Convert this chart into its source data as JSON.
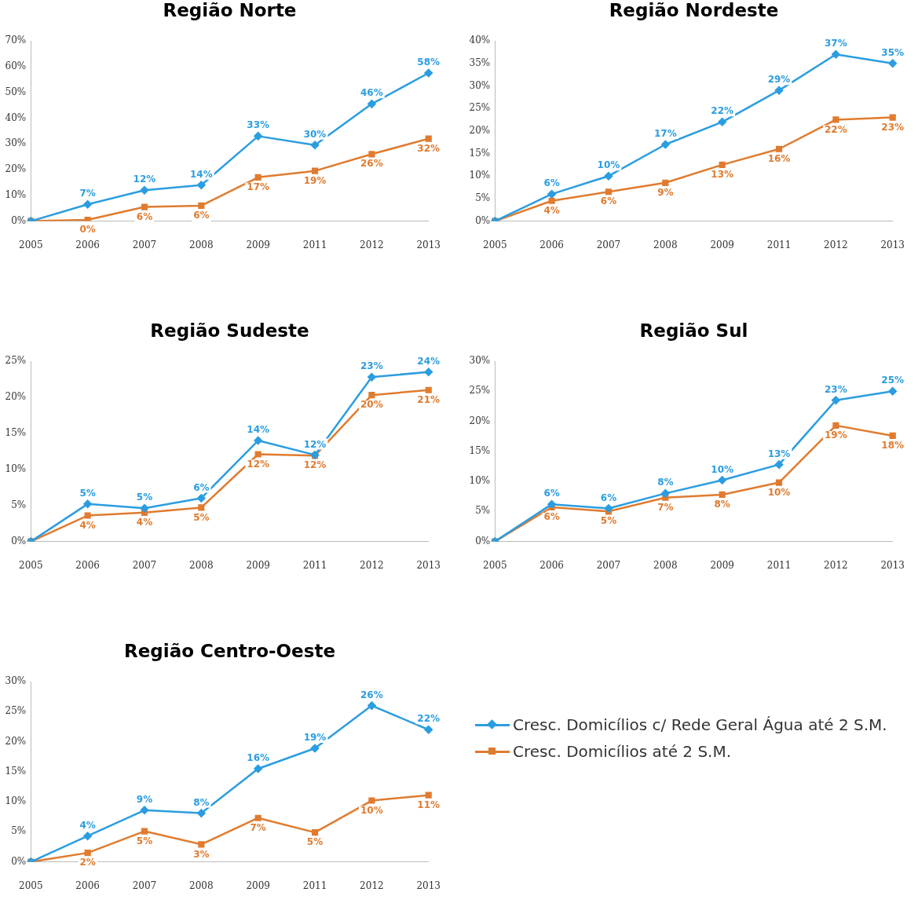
{
  "chart_data": [
    {
      "type": "line",
      "title": "Região Norte",
      "categories": [
        "2005",
        "2006",
        "2007",
        "2008",
        "2009",
        "2011",
        "2012",
        "2013"
      ],
      "ylim": [
        0,
        70
      ],
      "yticks": [
        {
          "value": 0,
          "label": "0%"
        },
        {
          "value": 10,
          "label": "10%"
        },
        {
          "value": 20,
          "label": "20%"
        },
        {
          "value": 30,
          "label": "30%"
        },
        {
          "value": 40,
          "label": "40%"
        },
        {
          "value": 50,
          "label": "50%"
        },
        {
          "value": 60,
          "label": "60%"
        },
        {
          "value": 70,
          "label": "70%"
        }
      ],
      "grid": false,
      "legend": false,
      "series": [
        {
          "color": "#2b9de0",
          "marker": "diamond",
          "values": [
            0,
            6.5,
            12,
            14,
            33,
            29.5,
            45.5,
            57.5
          ],
          "value_labels": [
            null,
            "7%",
            "12%",
            "14%",
            "33%",
            "30%",
            "46%",
            "58%"
          ]
        },
        {
          "color": "#e07b2f",
          "marker": "square",
          "values": [
            0,
            0.5,
            5.5,
            6,
            17,
            19.5,
            26,
            32
          ],
          "value_labels": [
            null,
            "0%",
            "6%",
            "6%",
            "17%",
            "19%",
            "26%",
            "32%"
          ]
        }
      ]
    },
    {
      "type": "line",
      "title": "Região Nordeste",
      "categories": [
        "2005",
        "2006",
        "2007",
        "2008",
        "2009",
        "2011",
        "2012",
        "2013"
      ],
      "ylim": [
        0,
        40
      ],
      "yticks": [
        {
          "value": 0,
          "label": "0%"
        },
        {
          "value": 5,
          "label": "5%"
        },
        {
          "value": 10,
          "label": "10%"
        },
        {
          "value": 15,
          "label": "15%"
        },
        {
          "value": 20,
          "label": "20%"
        },
        {
          "value": 25,
          "label": "25%"
        },
        {
          "value": 30,
          "label": "30%"
        },
        {
          "value": 35,
          "label": "35%"
        },
        {
          "value": 40,
          "label": "40%"
        }
      ],
      "grid": false,
      "legend": false,
      "series": [
        {
          "color": "#2b9de0",
          "marker": "diamond",
          "values": [
            0,
            6,
            10,
            17,
            22,
            29,
            37,
            35
          ],
          "value_labels": [
            null,
            "6%",
            "10%",
            "17%",
            "22%",
            "29%",
            "37%",
            "35%"
          ]
        },
        {
          "color": "#e07b2f",
          "marker": "square",
          "values": [
            0,
            4.5,
            6.5,
            8.5,
            12.5,
            16,
            22.5,
            23
          ],
          "value_labels": [
            null,
            "4%",
            "6%",
            "9%",
            "13%",
            "16%",
            "22%",
            "23%"
          ]
        }
      ]
    },
    {
      "type": "line",
      "title": "Região Sudeste",
      "categories": [
        "2005",
        "2006",
        "2007",
        "2008",
        "2009",
        "2011",
        "2012",
        "2013"
      ],
      "ylim": [
        0,
        25
      ],
      "yticks": [
        {
          "value": 0,
          "label": "0%"
        },
        {
          "value": 5,
          "label": "5%"
        },
        {
          "value": 10,
          "label": "10%"
        },
        {
          "value": 15,
          "label": "15%"
        },
        {
          "value": 20,
          "label": "20%"
        },
        {
          "value": 25,
          "label": "25%"
        }
      ],
      "grid": false,
      "legend": false,
      "series": [
        {
          "color": "#2b9de0",
          "marker": "diamond",
          "values": [
            0,
            5.2,
            4.6,
            6,
            14,
            12,
            22.8,
            23.5
          ],
          "value_labels": [
            null,
            "5%",
            "5%",
            "6%",
            "14%",
            "12%",
            "23%",
            "24%"
          ]
        },
        {
          "color": "#e07b2f",
          "marker": "square",
          "values": [
            0,
            3.6,
            4,
            4.7,
            12.1,
            11.9,
            20.3,
            21
          ],
          "value_labels": [
            null,
            "4%",
            "4%",
            "5%",
            "12%",
            "12%",
            "20%",
            "21%"
          ]
        }
      ]
    },
    {
      "type": "line",
      "title": "Região Sul",
      "categories": [
        "2005",
        "2006",
        "2007",
        "2008",
        "2009",
        "2011",
        "2012",
        "2013"
      ],
      "ylim": [
        0,
        30
      ],
      "yticks": [
        {
          "value": 0,
          "label": "0%"
        },
        {
          "value": 5,
          "label": "5%"
        },
        {
          "value": 10,
          "label": "10%"
        },
        {
          "value": 15,
          "label": "15%"
        },
        {
          "value": 20,
          "label": "20%"
        },
        {
          "value": 25,
          "label": "25%"
        },
        {
          "value": 30,
          "label": "30%"
        }
      ],
      "grid": false,
      "legend": false,
      "series": [
        {
          "color": "#2b9de0",
          "marker": "diamond",
          "values": [
            0,
            6.2,
            5.5,
            8,
            10.2,
            12.8,
            23.5,
            25
          ],
          "value_labels": [
            null,
            "6%",
            "6%",
            "8%",
            "10%",
            "13%",
            "23%",
            "25%"
          ]
        },
        {
          "color": "#e07b2f",
          "marker": "square",
          "values": [
            0,
            5.7,
            5,
            7.3,
            7.8,
            9.8,
            19.3,
            17.6
          ],
          "value_labels": [
            null,
            "6%",
            "5%",
            "7%",
            "8%",
            "10%",
            "19%",
            "18%"
          ]
        }
      ]
    },
    {
      "type": "line",
      "title": "Região Centro-Oeste",
      "categories": [
        "2005",
        "2006",
        "2007",
        "2008",
        "2009",
        "2011",
        "2012",
        "2013"
      ],
      "ylim": [
        0,
        30
      ],
      "yticks": [
        {
          "value": 0,
          "label": "0%"
        },
        {
          "value": 5,
          "label": "5%"
        },
        {
          "value": 10,
          "label": "10%"
        },
        {
          "value": 15,
          "label": "15%"
        },
        {
          "value": 20,
          "label": "20%"
        },
        {
          "value": 25,
          "label": "25%"
        },
        {
          "value": 30,
          "label": "30%"
        }
      ],
      "grid": false,
      "legend": "right",
      "series": [
        {
          "name": "Cresc. Domicílios c/ Rede Geral Água até 2 S.M.",
          "color": "#2b9de0",
          "marker": "diamond",
          "values": [
            0,
            4.3,
            8.6,
            8.1,
            15.5,
            18.9,
            26,
            22
          ],
          "value_labels": [
            null,
            "4%",
            "9%",
            "8%",
            "16%",
            "19%",
            "26%",
            "22%"
          ]
        },
        {
          "name": "Cresc. Domicílios até 2 S.M.",
          "color": "#e07b2f",
          "marker": "square",
          "values": [
            0,
            1.5,
            5.1,
            2.9,
            7.3,
            4.9,
            10.2,
            11.1
          ],
          "value_labels": [
            null,
            "2%",
            "5%",
            "3%",
            "7%",
            "5%",
            "10%",
            "11%"
          ]
        }
      ]
    }
  ]
}
